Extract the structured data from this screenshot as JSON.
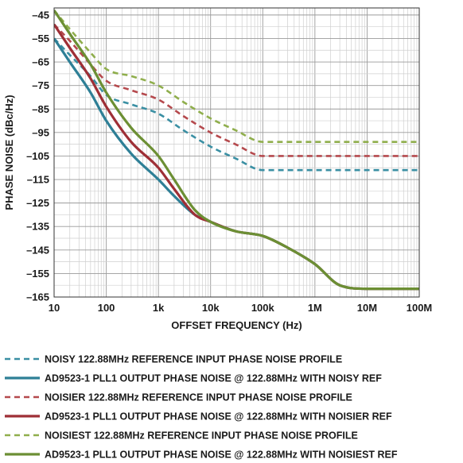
{
  "chart_data": {
    "type": "line",
    "xlabel": "OFFSET FREQUENCY (Hz)",
    "ylabel": "PHASE NOISE (dBc/Hz)",
    "xscale": "log",
    "xlim": [
      10,
      100000000
    ],
    "ylim": [
      -165,
      -42
    ],
    "grid": true,
    "legend_position": "bottom",
    "x_ticks": [
      {
        "value": 10,
        "label": "10"
      },
      {
        "value": 100,
        "label": "100"
      },
      {
        "value": 1000,
        "label": "1k"
      },
      {
        "value": 10000,
        "label": "10k"
      },
      {
        "value": 100000,
        "label": "100k"
      },
      {
        "value": 1000000,
        "label": "1M"
      },
      {
        "value": 10000000,
        "label": "10M"
      },
      {
        "value": 100000000,
        "label": "100M"
      }
    ],
    "y_ticks": [
      {
        "value": -45,
        "label": "–45"
      },
      {
        "value": -55,
        "label": "–55"
      },
      {
        "value": -65,
        "label": "–65"
      },
      {
        "value": -75,
        "label": "–75"
      },
      {
        "value": -85,
        "label": "–85"
      },
      {
        "value": -95,
        "label": "–95"
      },
      {
        "value": -105,
        "label": "–105"
      },
      {
        "value": -115,
        "label": "–115"
      },
      {
        "value": -125,
        "label": "–125"
      },
      {
        "value": -135,
        "label": "–135"
      },
      {
        "value": -145,
        "label": "–145"
      },
      {
        "value": -155,
        "label": "–155"
      },
      {
        "value": -165,
        "label": "–165"
      }
    ],
    "series": [
      {
        "name": "NOISY 122.88MHz REFERENCE INPUT PHASE NOISE PROFILE",
        "color": "#3a8fa3",
        "dashed": true,
        "x": [
          10,
          20,
          50,
          100,
          300,
          1000,
          3000,
          10000,
          30000,
          100000,
          300000,
          1000000,
          10000000,
          100000000
        ],
        "y": [
          -55,
          -62,
          -71,
          -79,
          -83,
          -87,
          -94,
          -101,
          -106,
          -111,
          -111,
          -111,
          -111,
          -111
        ]
      },
      {
        "name": "AD9523-1 PLL1 OUTPUT PHASE NOISE @ 122.88MHz WITH NOISY REF",
        "color": "#2e7f96",
        "dashed": false,
        "x": [
          10,
          20,
          50,
          100,
          300,
          1000,
          2000,
          5000,
          10000,
          30000,
          100000,
          300000,
          1000000,
          3000000,
          10000000,
          100000000
        ],
        "y": [
          -55,
          -65,
          -78,
          -90,
          -104,
          -115,
          -122,
          -130,
          -133,
          -137,
          -139,
          -144,
          -151,
          -160,
          -161.5,
          -161.5
        ]
      },
      {
        "name": "NOISIER 122.88MHz REFERENCE INPUT PHASE NOISE PROFILE",
        "color": "#b5494d",
        "dashed": true,
        "x": [
          10,
          20,
          50,
          100,
          300,
          1000,
          3000,
          10000,
          30000,
          100000,
          300000,
          1000000,
          10000000,
          100000000
        ],
        "y": [
          -49,
          -56,
          -66,
          -73,
          -77,
          -81,
          -88,
          -95,
          -100,
          -105,
          -105,
          -105,
          -105,
          -105
        ]
      },
      {
        "name": "AD9523-1 PLL1 OUTPUT PHASE NOISE @ 122.88MHz WITH NOISIER REF",
        "color": "#9e2f36",
        "dashed": false,
        "x": [
          10,
          20,
          50,
          100,
          300,
          1000,
          2000,
          5000,
          10000,
          30000,
          100000,
          300000,
          1000000,
          3000000,
          10000000,
          100000000
        ],
        "y": [
          -49,
          -59,
          -72,
          -84,
          -99,
          -110,
          -119,
          -130,
          -133,
          -137,
          -139,
          -144,
          -151,
          -160,
          -161.5,
          -161.5
        ]
      },
      {
        "name": "NOISIEST 122.88MHz REFERENCE INPUT PHASE NOISE PROFILE",
        "color": "#8fae4c",
        "dashed": true,
        "x": [
          10,
          20,
          50,
          100,
          300,
          1000,
          3000,
          10000,
          30000,
          100000,
          300000,
          1000000,
          10000000,
          100000000
        ],
        "y": [
          -43,
          -51,
          -61,
          -68,
          -71,
          -75,
          -82,
          -89,
          -94,
          -99,
          -99,
          -99,
          -99,
          -99
        ]
      },
      {
        "name": "AD9523-1 PLL1 OUTPUT PHASE NOISE @ 122.88MHz WITH NOISIEST REF",
        "color": "#6c8f34",
        "dashed": false,
        "x": [
          10,
          20,
          50,
          100,
          300,
          1000,
          2000,
          5000,
          10000,
          30000,
          100000,
          300000,
          1000000,
          3000000,
          10000000,
          100000000
        ],
        "y": [
          -43,
          -53,
          -66,
          -78,
          -93,
          -105,
          -115,
          -128,
          -133,
          -137,
          -139,
          -144,
          -151,
          -160,
          -161.5,
          -161.5
        ]
      }
    ]
  }
}
